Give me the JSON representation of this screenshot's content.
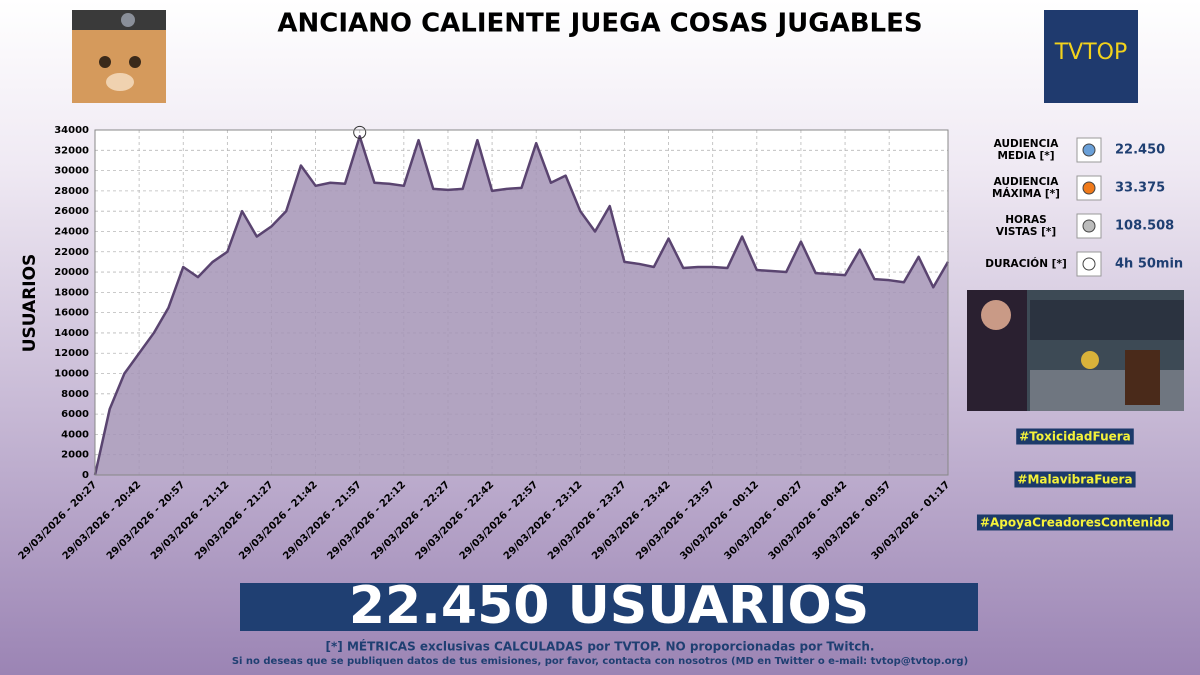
{
  "header": {
    "title": "ANCIANO CALIENTE JUEGA COSAS JUGABLES",
    "logo_text": "TVTOP"
  },
  "chart_data": {
    "type": "area",
    "y_label": "USUARIOS",
    "color": "#5a4470",
    "fill": "#a594b6",
    "grid": true,
    "categories": [
      "29/03/2026 - 20:27",
      null,
      null,
      "29/03/2026 - 20:42",
      null,
      null,
      "29/03/2026 - 20:57",
      null,
      null,
      "29/03/2026 - 21:12",
      null,
      null,
      "29/03/2026 - 21:27",
      null,
      null,
      "29/03/2026 - 21:42",
      null,
      null,
      "29/03/2026 - 21:57",
      null,
      null,
      "29/03/2026 - 22:12",
      null,
      null,
      "29/03/2026 - 22:27",
      null,
      null,
      "29/03/2026 - 22:42",
      null,
      null,
      "29/03/2026 - 22:57",
      null,
      null,
      "29/03/2026 - 23:12",
      null,
      null,
      "29/03/2026 - 23:27",
      null,
      null,
      "29/03/2026 - 23:42",
      null,
      null,
      "29/03/2026 - 23:57",
      null,
      null,
      "30/03/2026 - 00:12",
      null,
      null,
      "30/03/2026 - 00:27",
      null,
      null,
      "30/03/2026 - 00:42",
      null,
      null,
      "30/03/2026 - 00:57",
      null,
      null,
      null,
      "30/03/2026 - 01:17"
    ],
    "values": [
      0,
      6500,
      10000,
      12000,
      14000,
      16500,
      20500,
      19500,
      21000,
      22000,
      26000,
      23500,
      24500,
      26000,
      30500,
      28500,
      28800,
      28700,
      33375,
      28800,
      28700,
      28500,
      33000,
      28200,
      28100,
      28200,
      33000,
      28000,
      28200,
      28300,
      32700,
      28800,
      29500,
      26000,
      24000,
      26500,
      21000,
      20800,
      20500,
      23300,
      20400,
      20500,
      20500,
      20400,
      23500,
      20200,
      20100,
      20000,
      23000,
      19900,
      19800,
      19700,
      22200,
      19300,
      19200,
      19000,
      21500,
      18500,
      21000
    ],
    "ylim": [
      0,
      34000
    ],
    "yticks": [
      0,
      2000,
      4000,
      6000,
      8000,
      10000,
      12000,
      14000,
      16000,
      18000,
      20000,
      22000,
      24000,
      26000,
      28000,
      30000,
      32000,
      34000
    ]
  },
  "stats": [
    {
      "label": [
        "AUDIENCIA",
        "MEDIA [*]"
      ],
      "value": "22.450"
    },
    {
      "label": [
        "AUDIENCIA",
        "MÁXIMA [*]"
      ],
      "value": "33.375"
    },
    {
      "label": [
        "HORAS",
        "VISTAS [*]"
      ],
      "value": "108.508"
    },
    {
      "label": [
        "DURACIÓN [*]"
      ],
      "value": "4h 50min"
    }
  ],
  "hashtags": [
    "#ToxicidadFuera",
    "#MalavibraFuera",
    "#ApoyaCreadoresContenido"
  ],
  "banner": "22.450 USUARIOS",
  "footer": {
    "note": "[*] MÉTRICAS exclusivas CALCULADAS por TVTOP. NO proporcionadas por Twitch.",
    "contact": "Si no deseas que se publiquen datos de tus emisiones, por favor, contacta con nosotros (MD en Twitter o e-mail: tvtop@tvtop.org)"
  }
}
